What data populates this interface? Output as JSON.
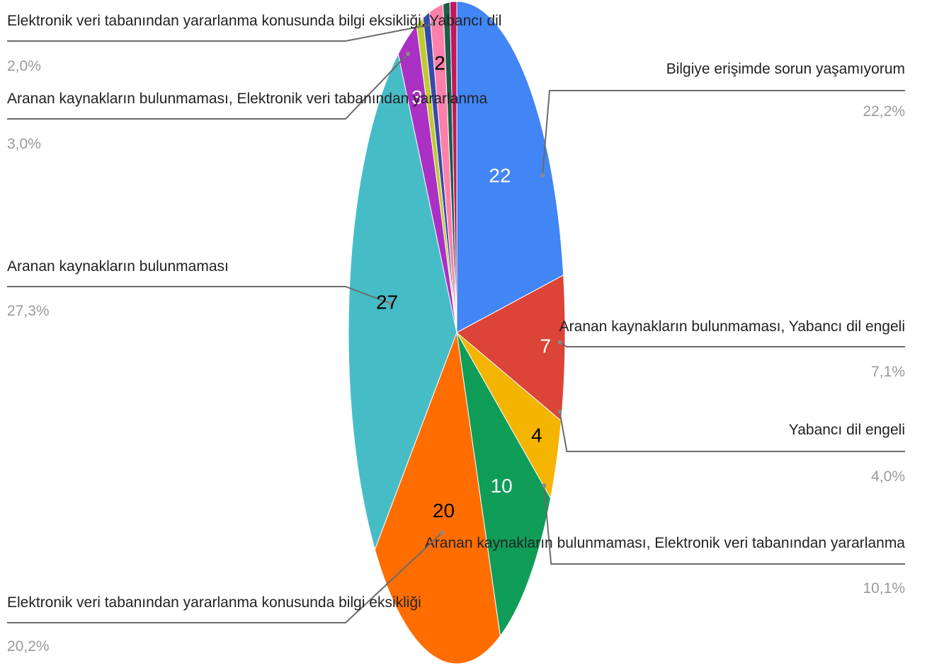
{
  "chart_data": {
    "type": "pie",
    "start_angle_deg": 0,
    "direction": "clockwise",
    "slices": [
      {
        "label": "Bilgiye erişimde sorun yaşamıyorum",
        "value": 22,
        "percent": "22,2%",
        "color": "#4285f4",
        "show_value": true,
        "value_color": "#ffffff",
        "show_callout": true
      },
      {
        "label": "Aranan kaynakların bulunmaması, Yabancı dil engeli",
        "value": 7,
        "percent": "7,1%",
        "color": "#db4437",
        "show_value": true,
        "value_color": "#ffffff",
        "show_callout": true
      },
      {
        "label": "Yabancı dil engeli",
        "value": 4,
        "percent": "4,0%",
        "color": "#f4b400",
        "show_value": true,
        "value_color": "#000000",
        "show_callout": true
      },
      {
        "label": "Aranan kaynakların bulunmaması, Elektronik veri tabanından yararlanma",
        "value": 10,
        "percent": "10,1%",
        "color": "#0f9d58",
        "show_value": true,
        "value_color": "#ffffff",
        "show_callout": true
      },
      {
        "label": "Elektronik veri tabanından yararlanma konusunda bilgi eksikliği",
        "value": 20,
        "percent": "20,2%",
        "color": "#ff6d01",
        "show_value": true,
        "value_color": "#000000",
        "show_callout": true
      },
      {
        "label": "Aranan kaynakların bulunmaması",
        "value": 27,
        "percent": "27,3%",
        "color": "#46bdc6",
        "show_value": true,
        "value_color": "#000000",
        "show_callout": true
      },
      {
        "label": "",
        "value": 3,
        "percent": "3,0%",
        "color": "#ab30c4",
        "show_value": true,
        "value_color": "#ffffff",
        "show_callout": false
      },
      {
        "label": "",
        "value": 1,
        "percent": "",
        "color": "#c0ca33",
        "show_value": false,
        "value_color": "#000000",
        "show_callout": false
      },
      {
        "label": "",
        "value": 1,
        "percent": "",
        "color": "#3949ab",
        "show_value": false,
        "value_color": "#ffffff",
        "show_callout": false
      },
      {
        "label": "",
        "value": 2,
        "percent": "2,0%",
        "color": "#ff80ab",
        "show_value": true,
        "value_color": "#000000",
        "show_callout": false
      },
      {
        "label": "",
        "value": 1,
        "percent": "",
        "color": "#1b5e4a",
        "show_value": false,
        "value_color": "#ffffff",
        "show_callout": false
      },
      {
        "label": "",
        "value": 1,
        "percent": "",
        "color": "#c2185b",
        "show_value": false,
        "value_color": "#ffffff",
        "show_callout": false
      }
    ],
    "left_callouts": [
      {
        "label": "Elektronik veri tabanından yararlanma konusunda bilgi eksikliği, Yabancı dil",
        "percent": "2,0%"
      },
      {
        "label": "Aranan kaynakların bulunmaması, Elektronik veri tabanından yararlanma",
        "percent": "3,0%"
      }
    ]
  }
}
